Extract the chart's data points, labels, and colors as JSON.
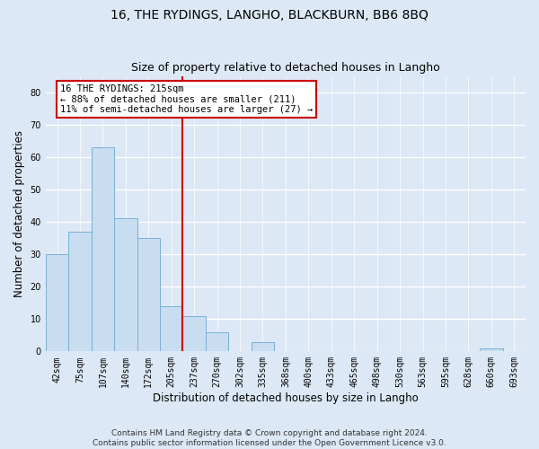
{
  "title": "16, THE RYDINGS, LANGHO, BLACKBURN, BB6 8BQ",
  "subtitle": "Size of property relative to detached houses in Langho",
  "xlabel": "Distribution of detached houses by size in Langho",
  "ylabel": "Number of detached properties",
  "bar_labels": [
    "42sqm",
    "75sqm",
    "107sqm",
    "140sqm",
    "172sqm",
    "205sqm",
    "237sqm",
    "270sqm",
    "302sqm",
    "335sqm",
    "368sqm",
    "400sqm",
    "433sqm",
    "465sqm",
    "498sqm",
    "530sqm",
    "563sqm",
    "595sqm",
    "628sqm",
    "660sqm",
    "693sqm"
  ],
  "bar_values": [
    30,
    37,
    63,
    41,
    35,
    14,
    11,
    6,
    0,
    3,
    0,
    0,
    0,
    0,
    0,
    0,
    0,
    0,
    0,
    1,
    0
  ],
  "bar_color": "#c8ddf0",
  "bar_edge_color": "#7bafd4",
  "vline_x": 5.5,
  "vline_color": "#cc0000",
  "annotation_text": "16 THE RYDINGS: 215sqm\n← 88% of detached houses are smaller (211)\n11% of semi-detached houses are larger (27) →",
  "annotation_box_color": "#ffffff",
  "annotation_box_edge": "#cc0000",
  "ylim": [
    0,
    85
  ],
  "yticks": [
    0,
    10,
    20,
    30,
    40,
    50,
    60,
    70,
    80
  ],
  "footer_text": "Contains HM Land Registry data © Crown copyright and database right 2024.\nContains public sector information licensed under the Open Government Licence v3.0.",
  "bg_color": "#dce8f5",
  "plot_bg_color": "#dce8f5",
  "title_fontsize": 10,
  "subtitle_fontsize": 9,
  "label_fontsize": 8.5,
  "tick_fontsize": 7,
  "footer_fontsize": 6.5,
  "annot_fontsize": 7.5
}
